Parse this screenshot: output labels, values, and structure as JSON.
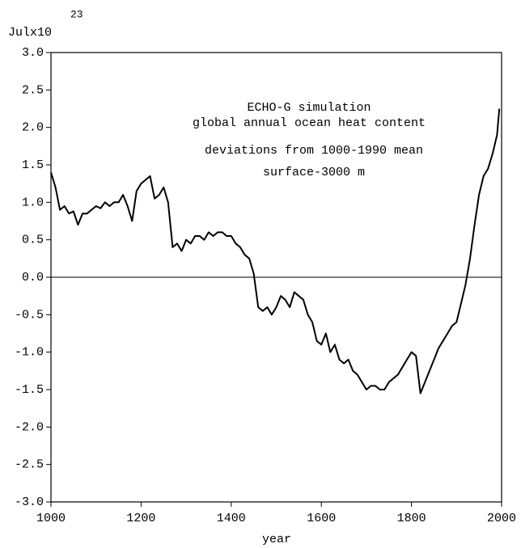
{
  "chart_data": {
    "type": "line",
    "annotations": [
      "ECHO-G simulation",
      "global annual ocean heat content",
      "deviations from 1000-1990 mean",
      "surface-3000 m"
    ],
    "y_label": "Julx10",
    "y_label_exponent": "23",
    "x_label": "year",
    "x": [
      1000,
      1010,
      1020,
      1030,
      1040,
      1050,
      1060,
      1070,
      1080,
      1090,
      1100,
      1110,
      1120,
      1130,
      1140,
      1150,
      1160,
      1170,
      1180,
      1190,
      1200,
      1210,
      1220,
      1230,
      1240,
      1250,
      1260,
      1270,
      1280,
      1290,
      1300,
      1310,
      1320,
      1330,
      1340,
      1350,
      1360,
      1370,
      1380,
      1390,
      1400,
      1410,
      1420,
      1430,
      1440,
      1450,
      1460,
      1470,
      1480,
      1490,
      1500,
      1510,
      1520,
      1530,
      1540,
      1550,
      1560,
      1570,
      1580,
      1590,
      1600,
      1610,
      1620,
      1630,
      1640,
      1650,
      1660,
      1670,
      1680,
      1690,
      1700,
      1710,
      1720,
      1730,
      1740,
      1750,
      1760,
      1770,
      1780,
      1790,
      1800,
      1810,
      1820,
      1830,
      1840,
      1850,
      1860,
      1870,
      1880,
      1890,
      1900,
      1910,
      1920,
      1930,
      1940,
      1950,
      1960,
      1970,
      1980,
      1990,
      1995
    ],
    "series": [
      {
        "color": "#000000",
        "values": [
          1.4,
          1.2,
          0.9,
          0.95,
          0.85,
          0.88,
          0.7,
          0.85,
          0.85,
          0.9,
          0.95,
          0.92,
          1.0,
          0.95,
          1.0,
          1.0,
          1.1,
          0.95,
          0.75,
          1.15,
          1.25,
          1.3,
          1.35,
          1.05,
          1.1,
          1.2,
          1.0,
          0.4,
          0.45,
          0.35,
          0.5,
          0.45,
          0.55,
          0.55,
          0.5,
          0.6,
          0.55,
          0.6,
          0.6,
          0.55,
          0.55,
          0.45,
          0.4,
          0.3,
          0.25,
          0.05,
          -0.4,
          -0.45,
          -0.4,
          -0.5,
          -0.4,
          -0.25,
          -0.3,
          -0.4,
          -0.2,
          -0.25,
          -0.3,
          -0.5,
          -0.6,
          -0.85,
          -0.9,
          -0.75,
          -1.0,
          -0.9,
          -1.1,
          -1.15,
          -1.1,
          -1.25,
          -1.3,
          -1.4,
          -1.5,
          -1.45,
          -1.45,
          -1.5,
          -1.5,
          -1.4,
          -1.35,
          -1.3,
          -1.2,
          -1.1,
          -1.0,
          -1.05,
          -1.55,
          -1.4,
          -1.25,
          -1.1,
          -0.95,
          -0.85,
          -0.75,
          -0.65,
          -0.6,
          -0.35,
          -0.1,
          0.25,
          0.7,
          1.1,
          1.35,
          1.45,
          1.65,
          1.9,
          2.25
        ]
      }
    ],
    "xlim": [
      1000,
      2000
    ],
    "xticks": [
      1000,
      1200,
      1400,
      1600,
      1800,
      2000
    ],
    "ylim": [
      -3,
      3
    ],
    "yticks": [
      {
        "value": -3,
        "label": "-3.0"
      },
      -2.5,
      {
        "value": -2,
        "label": "-2.0"
      },
      -1.5,
      {
        "value": -1,
        "label": "-1.0"
      },
      -0.5,
      {
        "value": 0,
        "label": "0.0"
      },
      0.5,
      {
        "value": 1,
        "label": "1.0"
      },
      1.5,
      {
        "value": 2,
        "label": "2.0"
      },
      2.5,
      {
        "value": 3,
        "label": "3.0"
      }
    ],
    "hline": 0
  }
}
